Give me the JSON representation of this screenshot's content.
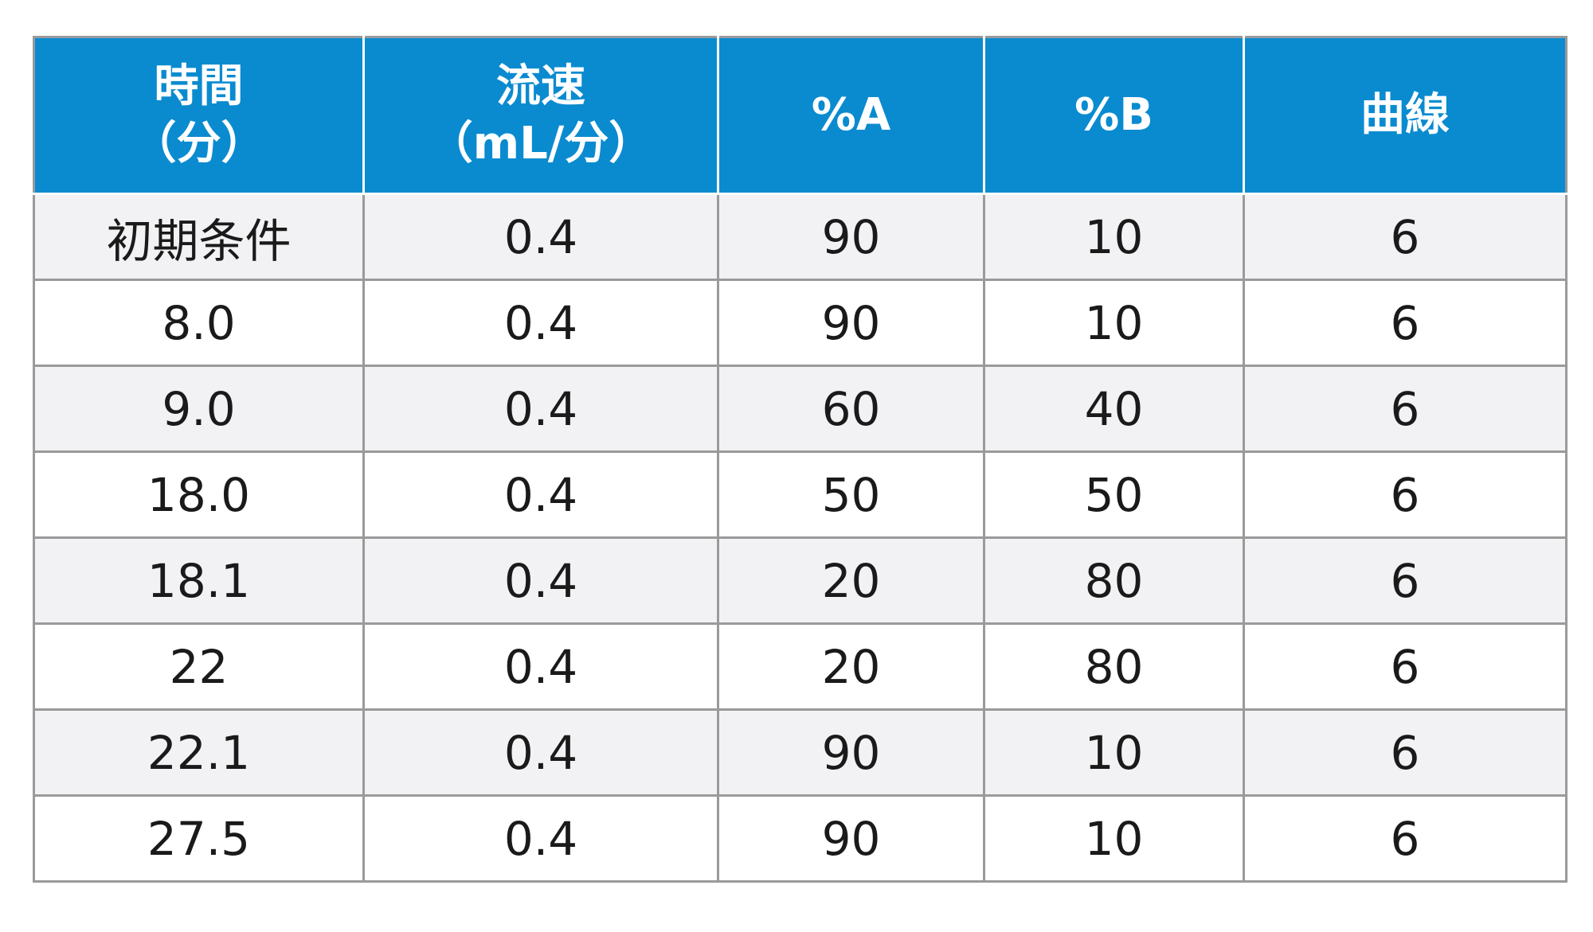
{
  "table": {
    "headers": [
      {
        "line1": "時間",
        "line2": "（分）"
      },
      {
        "line1": "流速",
        "line2": "（mL/分）"
      },
      {
        "line1": "%A",
        "line2": ""
      },
      {
        "line1": "%B",
        "line2": ""
      },
      {
        "line1": "曲線",
        "line2": ""
      }
    ],
    "rows": [
      [
        "初期条件",
        "0.4",
        "90",
        "10",
        "6"
      ],
      [
        "8.0",
        "0.4",
        "90",
        "10",
        "6"
      ],
      [
        "9.0",
        "0.4",
        "60",
        "40",
        "6"
      ],
      [
        "18.0",
        "0.4",
        "50",
        "50",
        "6"
      ],
      [
        "18.1",
        "0.4",
        "20",
        "80",
        "6"
      ],
      [
        "22",
        "0.4",
        "20",
        "80",
        "6"
      ],
      [
        "22.1",
        "0.4",
        "90",
        "10",
        "6"
      ],
      [
        "27.5",
        "0.4",
        "90",
        "10",
        "6"
      ]
    ],
    "colors": {
      "header_bg": "#0a8bd0",
      "header_text": "#ffffff",
      "row_alt_bg": "#f2f2f4",
      "border": "#9a9a9a"
    }
  }
}
